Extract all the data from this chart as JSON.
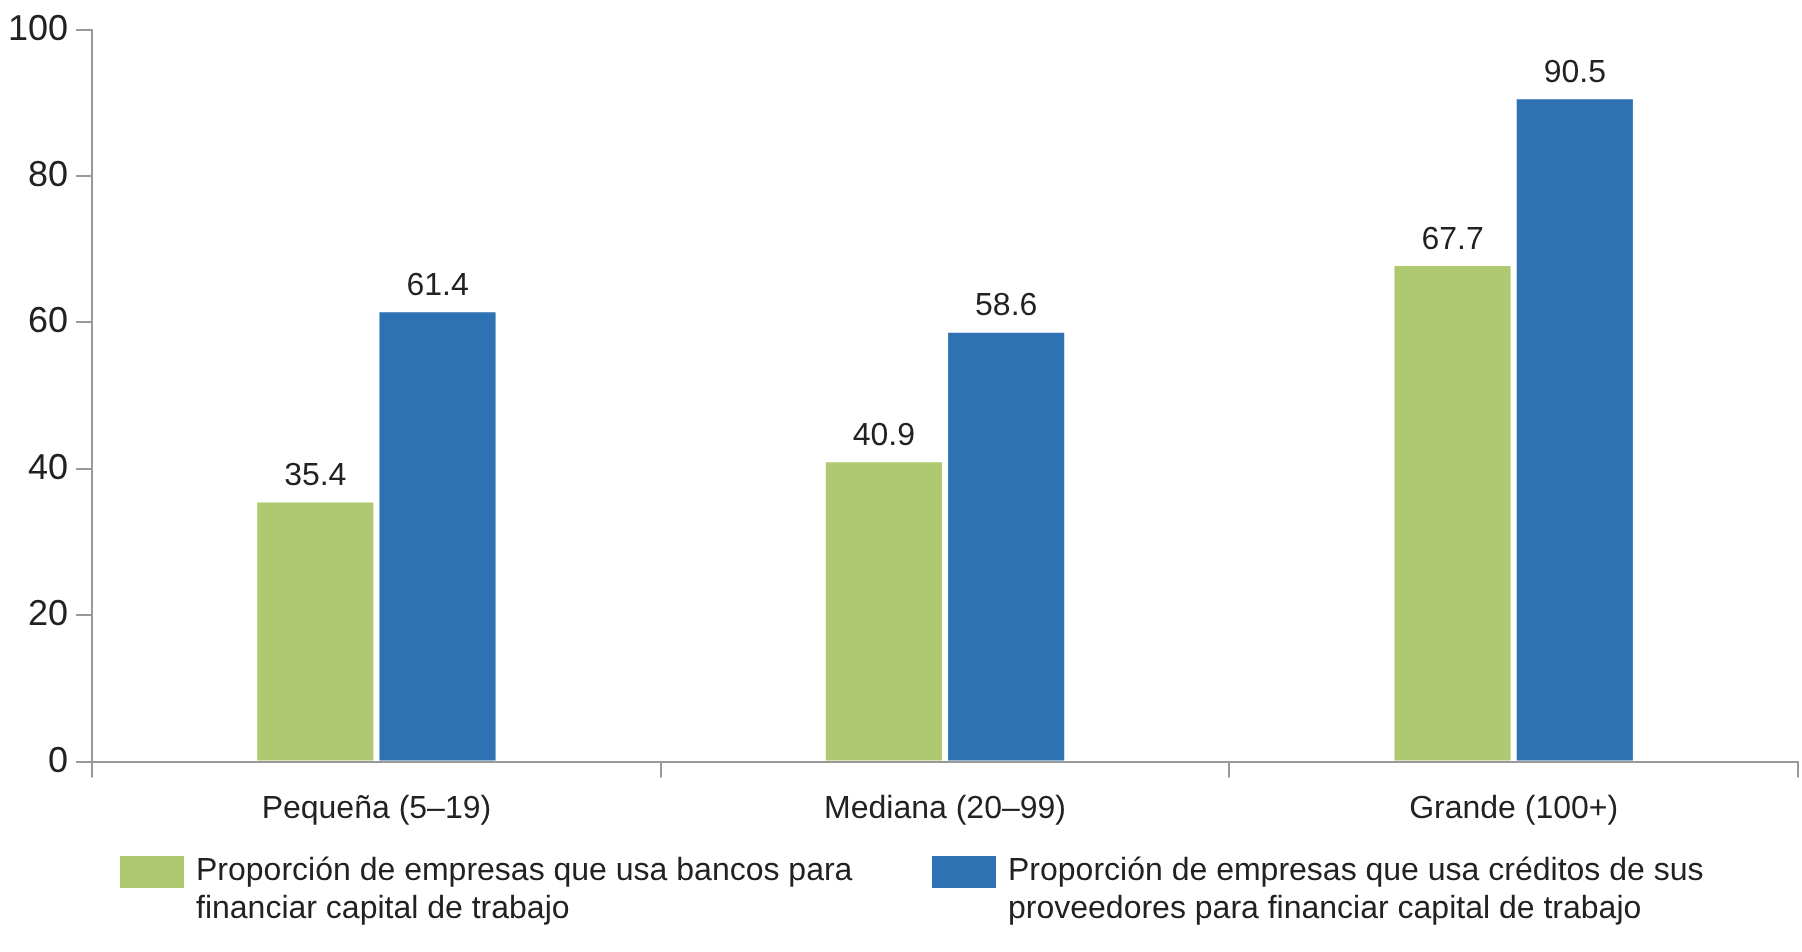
{
  "chart_data": {
    "type": "bar",
    "categories": [
      "Pequeña (5–19)",
      "Mediana (20–99)",
      "Grande (100+)"
    ],
    "series": [
      {
        "name": "Proporción de empresas que usa bancos para financiar capital de trabajo",
        "color": "#afc971",
        "values": [
          35.4,
          40.9,
          67.7
        ]
      },
      {
        "name": "Proporción de empresas que usa créditos de sus proveedores para financiar capital de trabajo",
        "color": "#2e72b4",
        "values": [
          61.4,
          58.6,
          90.5
        ]
      }
    ],
    "ylim": [
      0,
      100
    ],
    "yticks": [
      0,
      20,
      40,
      60,
      80,
      100
    ],
    "grid": false,
    "legend": "bottom",
    "data_labels": true
  }
}
